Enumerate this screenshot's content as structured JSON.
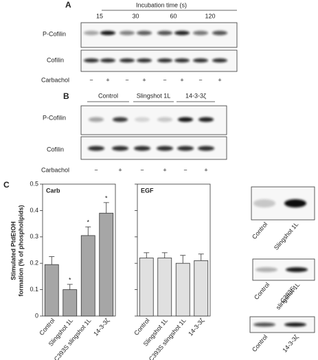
{
  "panel_a": {
    "label": "A",
    "header": "Incubation time (s)",
    "times": [
      "15",
      "30",
      "60",
      "120"
    ],
    "rows": [
      "P-Cofilin",
      "Cofilin"
    ],
    "treatment": "Carbachol",
    "signs": [
      "−",
      "+",
      "−",
      "+",
      "−",
      "+",
      "−",
      "+"
    ]
  },
  "panel_b": {
    "label": "B",
    "groups": [
      "Control",
      "Slingshot 1L",
      "14-3-3ζ"
    ],
    "rows": [
      "P-Cofilin",
      "Cofilin"
    ],
    "treatment": "Carbachol",
    "signs": [
      "−",
      "+",
      "−",
      "+",
      "−",
      "+"
    ]
  },
  "panel_c": {
    "label": "C",
    "y_label": [
      "Stimulated PtdEtOH",
      "formation (% of phospholipids)"
    ],
    "insets": [
      {
        "labels": [
          [
            "Control"
          ],
          [
            "Slingshot 1L"
          ]
        ]
      },
      {
        "labels": [
          [
            "Control"
          ],
          [
            "C393S",
            "slingshot 1L"
          ]
        ]
      },
      {
        "labels": [
          [
            "Control"
          ],
          [
            "14-3-3ζ"
          ]
        ]
      }
    ]
  },
  "chart_data": [
    {
      "type": "bar",
      "title": "Carb",
      "categories": [
        "Control",
        "Slingshot 1L",
        "C393S slingshot 1L",
        "14-3-3ζ"
      ],
      "values": [
        0.195,
        0.1,
        0.305,
        0.39
      ],
      "errors": [
        0.03,
        0.02,
        0.033,
        0.04
      ],
      "significance": [
        null,
        "*",
        "*",
        "*"
      ],
      "color": "#a6a6a6",
      "ylim": [
        0,
        0.5
      ],
      "yticks": [
        0,
        0.1,
        0.2,
        0.3,
        0.4,
        0.5
      ],
      "tick_labels": true
    },
    {
      "type": "bar",
      "title": "EGF",
      "categories": [
        "Control",
        "Slingshot 1L",
        "C393S slingshot 1L",
        "14-3-3ζ"
      ],
      "values": [
        0.22,
        0.22,
        0.2,
        0.21
      ],
      "errors": [
        0.02,
        0.02,
        0.03,
        0.025
      ],
      "color": "#e0e0e0",
      "ylim": [
        0,
        0.5
      ],
      "yticks": [
        0,
        0.1,
        0.2,
        0.3,
        0.4,
        0.5
      ],
      "tick_labels": false
    }
  ]
}
